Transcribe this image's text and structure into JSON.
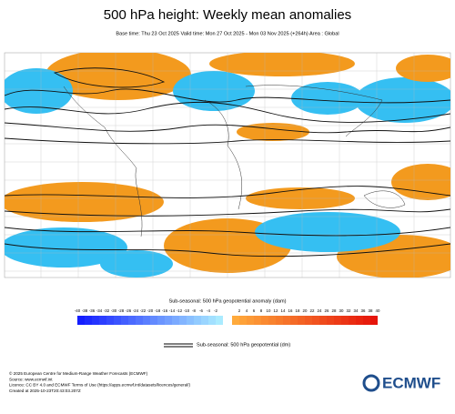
{
  "header": {
    "title": "500 hPa height: Weekly mean anomalies",
    "subtitle": "Base time: Thu 23 Oct 2025 Valid time: Mon 27 Oct 2025 - Mon 03 Nov 2025 (+264h) Area : Global"
  },
  "colorbar": {
    "title": "Sub-seasonal: 500 hPa geopotential anomaly (dam)",
    "ticks": [
      -40,
      -38,
      -36,
      -34,
      -32,
      -30,
      -28,
      -26,
      -24,
      -22,
      -20,
      -18,
      -16,
      -14,
      -12,
      -10,
      -8,
      -6,
      -4,
      -2,
      2,
      4,
      6,
      8,
      10,
      12,
      14,
      16,
      18,
      20,
      22,
      24,
      26,
      28,
      30,
      32,
      34,
      36,
      38,
      40
    ]
  },
  "legend": {
    "label": "Sub-seasonal: 500 hPa geopotential (dm)"
  },
  "footer": {
    "lines": [
      "© 2025 European Centre for Medium-Range Weather Forecasts (ECMWF)",
      "Source: www.ecmwf.int",
      "Licence: CC BY 4.0 and ECMWF Terms of Use (https://apps.ecmwf.int/datasets/licences/general/)",
      "Created at 2025-10-23T20:43:03.207Z"
    ]
  },
  "logo": "ECMWF"
}
